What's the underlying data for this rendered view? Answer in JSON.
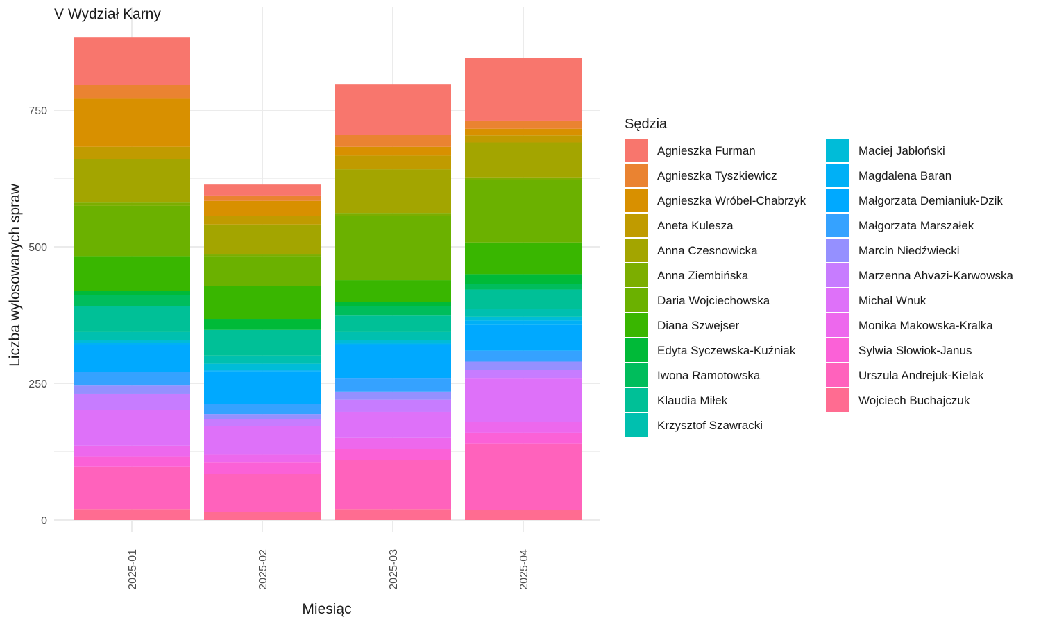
{
  "chart_data": {
    "type": "bar",
    "stacked": true,
    "title": "V Wydział Karny",
    "xlabel": "Miesiąc",
    "ylabel": "Liczba wylosowanych spraw",
    "legend_title": "Sędzia",
    "legend_position": "right",
    "grid": true,
    "ylim": [
      0,
      900
    ],
    "yticks": [
      0,
      250,
      500,
      750
    ],
    "categories": [
      "2025-01",
      "2025-02",
      "2025-03",
      "2025-04"
    ],
    "series": [
      {
        "name": "Agnieszka Furman",
        "color": "#F8766D",
        "values": [
          87,
          20,
          93,
          115
        ]
      },
      {
        "name": "Agnieszka Tyszkiewicz",
        "color": "#EA8331",
        "values": [
          25,
          10,
          22,
          15
        ]
      },
      {
        "name": "Agnieszka Wróbel-Chabrzyk",
        "color": "#D89000",
        "values": [
          88,
          28,
          16,
          12
        ]
      },
      {
        "name": "Aneta Kulesza",
        "color": "#C09B00",
        "values": [
          23,
          15,
          25,
          13
        ]
      },
      {
        "name": "Anna Czesnowicka",
        "color": "#A3A500",
        "values": [
          79,
          55,
          80,
          65
        ]
      },
      {
        "name": "Anna Ziembińska",
        "color": "#7CAE00",
        "values": [
          6,
          3,
          6,
          3
        ]
      },
      {
        "name": "Daria Wojciechowska",
        "color": "#6BB100",
        "values": [
          92,
          55,
          117,
          115
        ]
      },
      {
        "name": "Diana Szwejser",
        "color": "#39B600",
        "values": [
          63,
          60,
          40,
          58
        ]
      },
      {
        "name": "Edyta Syczewska-Kuźniak",
        "color": "#00BA38",
        "values": [
          8,
          20,
          7,
          18
        ]
      },
      {
        "name": "Iwona Ramotowska",
        "color": "#00BD5C",
        "values": [
          20,
          0,
          18,
          10
        ]
      },
      {
        "name": "Klaudia Miłek",
        "color": "#00C097",
        "values": [
          48,
          47,
          30,
          35
        ]
      },
      {
        "name": "Krzysztof Szawracki",
        "color": "#00C0AF",
        "values": [
          15,
          15,
          15,
          15
        ]
      },
      {
        "name": "Maciej Jabłoński",
        "color": "#00BCD8",
        "values": [
          5,
          12,
          6,
          7
        ]
      },
      {
        "name": "Magdalena Baran",
        "color": "#00B0F6",
        "values": [
          3,
          2,
          3,
          8
        ]
      },
      {
        "name": "Małgorzata Demianiuk-Dzik",
        "color": "#00A9FF",
        "values": [
          50,
          60,
          60,
          47
        ]
      },
      {
        "name": "Małgorzata Marszałek",
        "color": "#35A2FF",
        "values": [
          25,
          18,
          25,
          20
        ]
      },
      {
        "name": "Marcin Niedźwiecki",
        "color": "#9590FF",
        "values": [
          15,
          10,
          15,
          15
        ]
      },
      {
        "name": "Marzenna Ahvazi-Karwowska",
        "color": "#C77CFF",
        "values": [
          30,
          12,
          22,
          15
        ]
      },
      {
        "name": "Michał Wnuk",
        "color": "#DE71F9",
        "values": [
          65,
          52,
          48,
          80
        ]
      },
      {
        "name": "Monika Makowska-Kralka",
        "color": "#ED68ED",
        "values": [
          20,
          15,
          20,
          20
        ]
      },
      {
        "name": "Sylwia Słowiok-Janus",
        "color": "#FB61D7",
        "values": [
          18,
          20,
          20,
          20
        ]
      },
      {
        "name": "Urszula Andrejuk-Kielak",
        "color": "#FF62BC",
        "values": [
          78,
          70,
          90,
          122
        ]
      },
      {
        "name": "Wojciech Buchajczuk",
        "color": "#FF6C91",
        "values": [
          20,
          15,
          20,
          18
        ]
      }
    ]
  }
}
